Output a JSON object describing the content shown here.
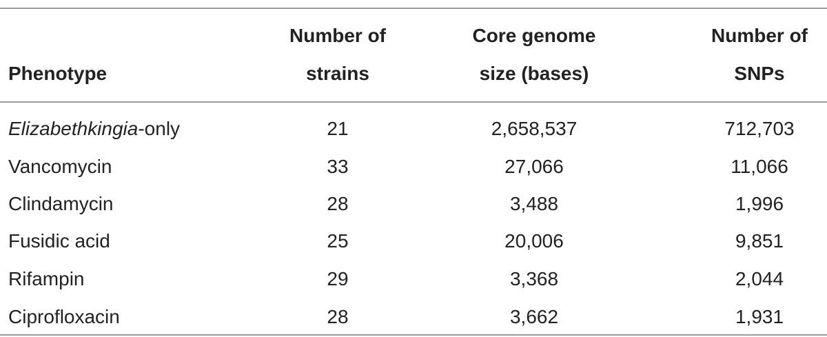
{
  "table": {
    "header": [
      [
        "Phenotype"
      ],
      [
        "Number of",
        "strains"
      ],
      [
        "Core genome",
        "size (bases)"
      ],
      [
        "Number of",
        "SNPs"
      ]
    ],
    "rows": [
      [
        [
          "Elizabethkingia",
          "-only"
        ],
        "21",
        "2,658,537",
        "712,703"
      ],
      [
        "Vancomycin",
        "33",
        "27,066",
        "11,066"
      ],
      [
        "Clindamycin",
        "28",
        "3,488",
        "1,996"
      ],
      [
        "Fusidic acid",
        "25",
        "20,006",
        "9,851"
      ],
      [
        "Rifampin",
        "29",
        "3,368",
        "2,044"
      ],
      [
        "Ciprofloxacin",
        "28",
        "3,662",
        "1,931"
      ]
    ]
  }
}
